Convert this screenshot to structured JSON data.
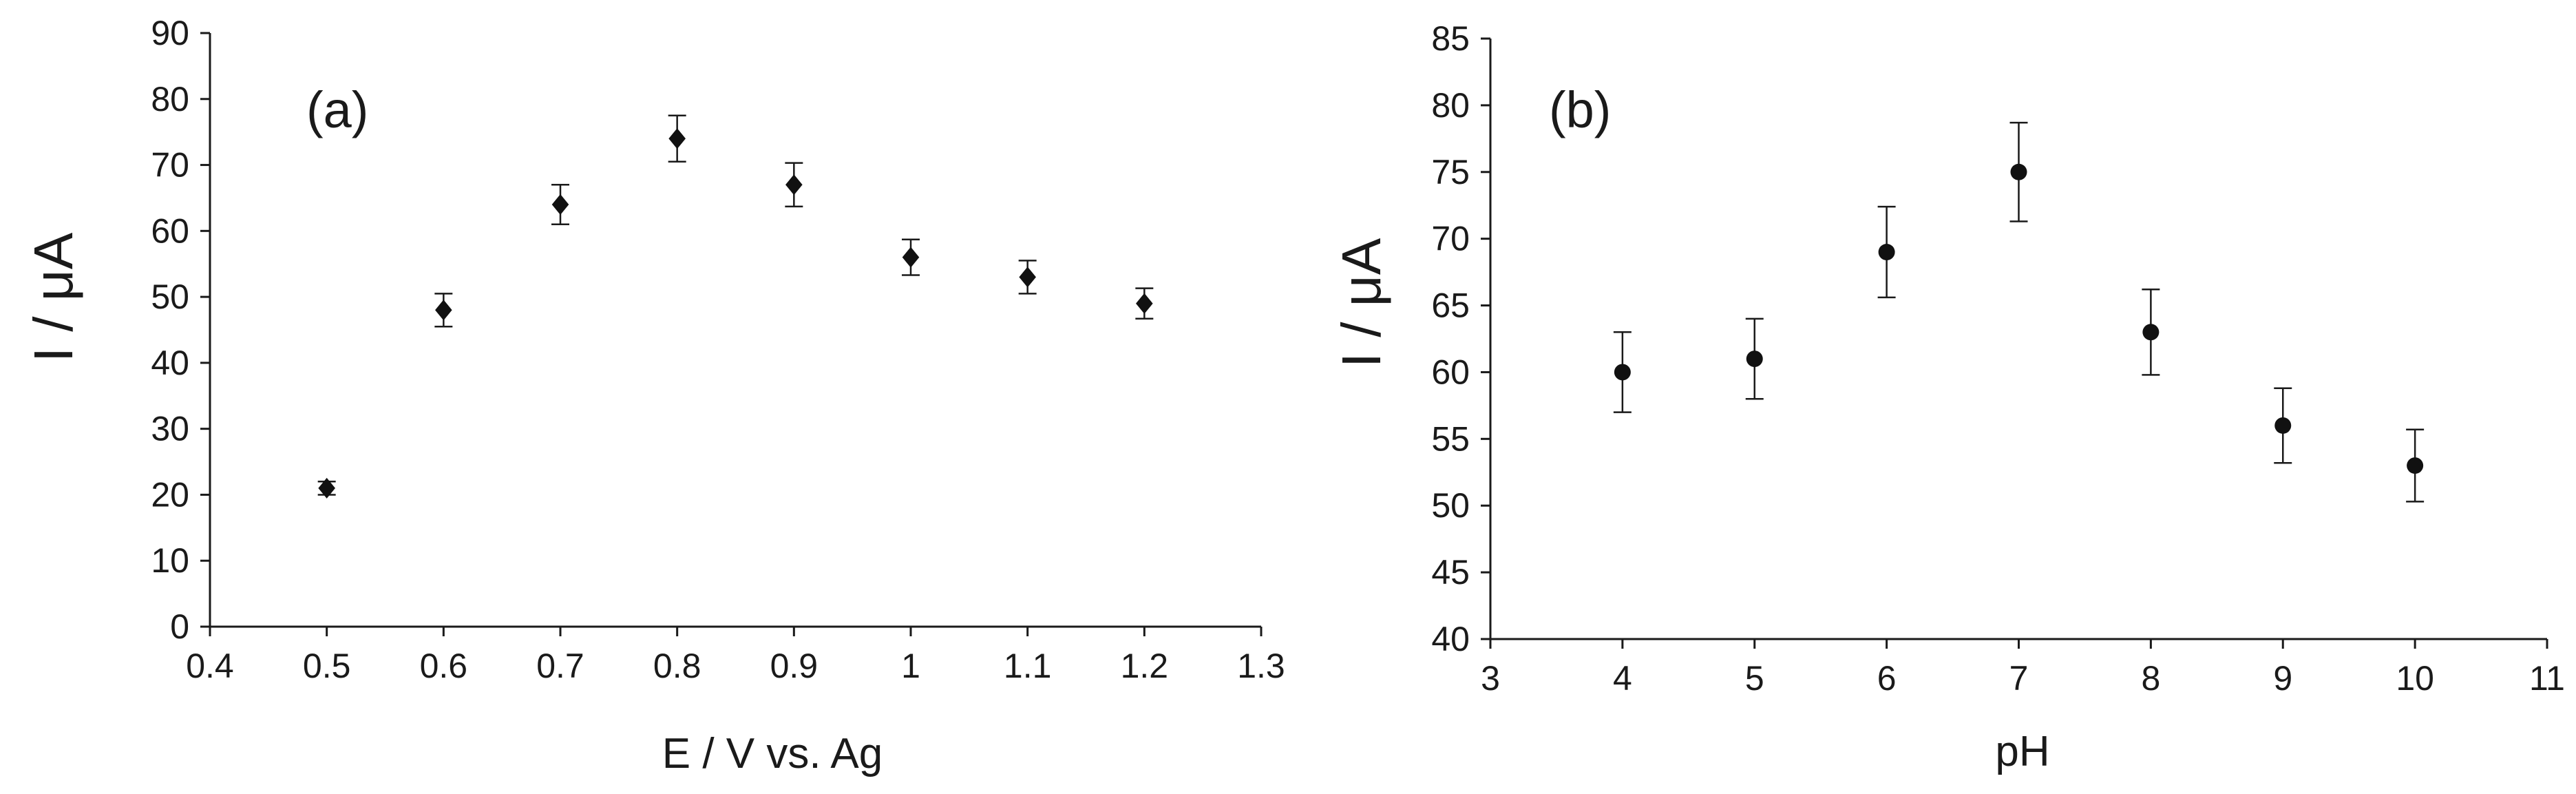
{
  "chart_data": [
    {
      "type": "scatter",
      "panel_label": "(a)",
      "xlabel": "E / V vs. Ag",
      "ylabel": "I / μA",
      "xlim": [
        0.4,
        1.3
      ],
      "ylim": [
        0,
        90
      ],
      "x_ticks": [
        0.4,
        0.5,
        0.6,
        0.7,
        0.8,
        0.9,
        1,
        1.1,
        1.2,
        1.3
      ],
      "x_tick_labels": [
        "0.4",
        "0.5",
        "0.6",
        "0.7",
        "0.8",
        "0.9",
        "1",
        "1.1",
        "1.2",
        "1.3"
      ],
      "y_ticks": [
        0,
        10,
        20,
        30,
        40,
        50,
        60,
        70,
        80,
        90
      ],
      "y_tick_labels": [
        "0",
        "10",
        "20",
        "30",
        "40",
        "50",
        "60",
        "70",
        "80",
        "90"
      ],
      "marker": "diamond",
      "grid": false,
      "series": [
        {
          "x": [
            0.5,
            0.6,
            0.7,
            0.8,
            0.9,
            1.0,
            1.1,
            1.2
          ],
          "y": [
            21,
            48,
            64,
            74,
            67,
            56,
            53,
            49
          ],
          "error": [
            1,
            2.5,
            3,
            3.5,
            3.3,
            2.7,
            2.5,
            2.3
          ]
        }
      ]
    },
    {
      "type": "scatter",
      "panel_label": "(b)",
      "xlabel": "pH",
      "ylabel": "I / μA",
      "xlim": [
        3,
        11
      ],
      "ylim": [
        40,
        85
      ],
      "x_ticks": [
        3,
        4,
        5,
        6,
        7,
        8,
        9,
        10,
        11
      ],
      "x_tick_labels": [
        "3",
        "4",
        "5",
        "6",
        "7",
        "8",
        "9",
        "10",
        "11"
      ],
      "y_ticks": [
        40,
        45,
        50,
        55,
        60,
        65,
        70,
        75,
        80,
        85
      ],
      "y_tick_labels": [
        "40",
        "45",
        "50",
        "55",
        "60",
        "65",
        "70",
        "75",
        "80",
        "85"
      ],
      "marker": "circle",
      "grid": false,
      "series": [
        {
          "x": [
            4,
            5,
            6,
            7,
            8,
            9,
            10
          ],
          "y": [
            60,
            61,
            69,
            75,
            63,
            56,
            53
          ],
          "error": [
            3,
            3,
            3.4,
            3.7,
            3.2,
            2.8,
            2.7
          ]
        }
      ]
    }
  ]
}
